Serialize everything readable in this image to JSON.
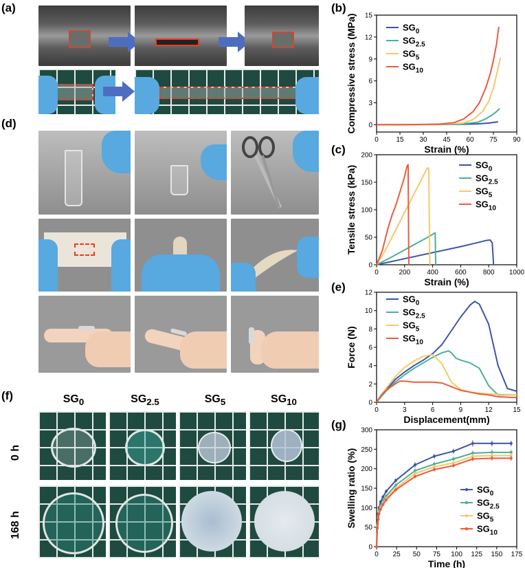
{
  "panel_labels": {
    "a": "(a)",
    "b": "(b)",
    "c": "(c)",
    "d": "(d)",
    "e": "(e)",
    "f": "(f)",
    "g": "(g)"
  },
  "swelling_photos": {
    "columns": [
      {
        "base": "SG",
        "sub": "0"
      },
      {
        "base": "SG",
        "sub": "2.5"
      },
      {
        "base": "SG",
        "sub": "5"
      },
      {
        "base": "SG",
        "sub": "10"
      }
    ],
    "rows": [
      "0 h",
      "168 h"
    ]
  },
  "colors": {
    "SG0": "#3b55a6",
    "SG2.5": "#4bae9c",
    "SG5": "#f6c868",
    "SG10": "#ee5a3c"
  },
  "chart_data": [
    {
      "id": "b",
      "type": "line",
      "xlabel": "Strain (%)",
      "ylabel": "Compressive stress (MPa)",
      "xlim": [
        0,
        90
      ],
      "ylim": [
        -1,
        15
      ],
      "xticks": [
        0,
        15,
        30,
        45,
        60,
        75,
        90
      ],
      "yticks": [
        0,
        3,
        6,
        9,
        12,
        15
      ],
      "legend_position": "top-left",
      "series": [
        {
          "name": "SG0",
          "base": "SG",
          "sub": "0",
          "color": "#3b55a6",
          "x": [
            0,
            20,
            40,
            55,
            65,
            72,
            78
          ],
          "y": [
            0,
            0.01,
            0.03,
            0.06,
            0.12,
            0.22,
            0.4
          ]
        },
        {
          "name": "SG2.5",
          "base": "SG",
          "sub": "2.5",
          "color": "#4bae9c",
          "x": [
            0,
            20,
            40,
            55,
            65,
            70,
            74,
            77,
            79
          ],
          "y": [
            0,
            0.01,
            0.04,
            0.1,
            0.35,
            0.8,
            1.3,
            1.8,
            2.2
          ]
        },
        {
          "name": "SG5",
          "base": "SG",
          "sub": "5",
          "color": "#f6c868",
          "x": [
            0,
            20,
            40,
            55,
            62,
            68,
            72,
            75,
            77,
            78.5,
            79.5
          ],
          "y": [
            0,
            0.01,
            0.05,
            0.2,
            0.7,
            1.8,
            3.2,
            5,
            6.8,
            8.2,
            9.2
          ]
        },
        {
          "name": "SG10",
          "base": "SG",
          "sub": "10",
          "color": "#ee5a3c",
          "x": [
            0,
            20,
            40,
            50,
            56,
            62,
            66,
            70,
            73,
            75,
            77,
            78.5
          ],
          "y": [
            0,
            0.02,
            0.08,
            0.3,
            0.8,
            1.8,
            3,
            5,
            7,
            8.8,
            11,
            13.4
          ]
        }
      ]
    },
    {
      "id": "c",
      "type": "line",
      "xlabel": "Strain (%)",
      "ylabel": "Tensile stress (kPa)",
      "xlim": [
        0,
        1000
      ],
      "ylim": [
        0,
        200
      ],
      "xticks": [
        0,
        200,
        400,
        600,
        800,
        1000
      ],
      "yticks": [
        0,
        50,
        100,
        150,
        200
      ],
      "legend_position": "top-right",
      "series": [
        {
          "name": "SG0",
          "base": "SG",
          "sub": "0",
          "color": "#3b55a6",
          "x": [
            0,
            200,
            400,
            600,
            700,
            780,
            810,
            825,
            835
          ],
          "y": [
            0,
            11,
            22,
            33,
            39,
            44,
            45,
            40,
            0
          ]
        },
        {
          "name": "SG2.5",
          "base": "SG",
          "sub": "2.5",
          "color": "#4bae9c",
          "x": [
            0,
            100,
            200,
            300,
            380,
            410,
            418,
            422
          ],
          "y": [
            0,
            13,
            27,
            41,
            52,
            57,
            58,
            0
          ]
        },
        {
          "name": "SG5",
          "base": "SG",
          "sub": "5",
          "color": "#f6c868",
          "x": [
            0,
            60,
            120,
            200,
            280,
            330,
            360,
            372,
            380
          ],
          "y": [
            0,
            25,
            55,
            95,
            135,
            160,
            175,
            176,
            0
          ]
        },
        {
          "name": "SG10",
          "base": "SG",
          "sub": "10",
          "color": "#ee5a3c",
          "x": [
            0,
            40,
            80,
            110,
            140,
            170,
            200,
            215,
            225,
            230
          ],
          "y": [
            0,
            25,
            65,
            90,
            110,
            135,
            160,
            178,
            182,
            0
          ]
        }
      ]
    },
    {
      "id": "e",
      "type": "line",
      "xlabel": "Displacement(mm)",
      "ylabel": "Force (N)",
      "xlim": [
        0,
        15
      ],
      "ylim": [
        0,
        12
      ],
      "xticks": [
        0,
        3,
        6,
        9,
        12,
        15
      ],
      "yticks": [
        0,
        2,
        4,
        6,
        8,
        10,
        12
      ],
      "legend_position": "top-left",
      "series": [
        {
          "name": "SG0",
          "base": "SG",
          "sub": "0",
          "color": "#3b55a6",
          "x": [
            0,
            1,
            2,
            3,
            4,
            5,
            6,
            7,
            8,
            9,
            10,
            10.5,
            11,
            12,
            13,
            14,
            15
          ],
          "y": [
            0,
            1.3,
            2.5,
            3.3,
            4,
            4.6,
            5.3,
            6.3,
            7.8,
            9.3,
            10.6,
            11,
            10.7,
            8.5,
            4,
            1.5,
            1.2
          ]
        },
        {
          "name": "SG2.5",
          "base": "SG",
          "sub": "2.5",
          "color": "#4bae9c",
          "x": [
            0,
            1,
            2,
            3,
            4,
            5,
            6,
            7,
            7.7,
            8,
            8.5,
            9,
            10,
            11,
            12,
            13,
            15
          ],
          "y": [
            0,
            1.2,
            2.2,
            3,
            3.7,
            4.3,
            4.9,
            5.4,
            5.6,
            5.4,
            4.8,
            4.6,
            4.3,
            3.7,
            1.8,
            0.8,
            0.8
          ]
        },
        {
          "name": "SG5",
          "base": "SG",
          "sub": "5",
          "color": "#f6c868",
          "x": [
            0,
            1,
            2,
            3,
            4,
            5,
            6,
            7,
            8,
            9,
            10,
            11,
            12,
            15
          ],
          "y": [
            0,
            1.5,
            2.8,
            3.8,
            4.5,
            5,
            5.2,
            4.2,
            2.2,
            1.4,
            1.1,
            1,
            0.9,
            0.8
          ]
        },
        {
          "name": "SG10",
          "base": "SG",
          "sub": "10",
          "color": "#ee5a3c",
          "x": [
            0,
            0.5,
            1,
            2,
            2.5,
            3,
            4,
            5,
            6,
            7,
            8,
            9,
            10,
            11,
            12,
            13,
            15
          ],
          "y": [
            0,
            0.8,
            1.3,
            2,
            2.3,
            2.3,
            2.2,
            2.2,
            2.2,
            2.1,
            1.7,
            1.3,
            1.1,
            0.9,
            0.8,
            0.6,
            0.5
          ]
        }
      ]
    },
    {
      "id": "g",
      "type": "line",
      "xlabel": "Time (h)",
      "ylabel": "Swelling ratio (%)",
      "xlim": [
        0,
        175
      ],
      "ylim": [
        0,
        300
      ],
      "xticks": [
        0,
        25,
        50,
        75,
        100,
        125,
        150,
        175
      ],
      "yticks": [
        0,
        50,
        100,
        150,
        200,
        250,
        300
      ],
      "legend_position": "bottom-right",
      "series": [
        {
          "name": "SG0",
          "base": "SG",
          "sub": "0",
          "color": "#3b55a6",
          "x": [
            0,
            1,
            2,
            3,
            5,
            8,
            12,
            24,
            48,
            72,
            96,
            120,
            144,
            168
          ],
          "y": [
            0,
            60,
            85,
            100,
            115,
            128,
            142,
            170,
            210,
            232,
            245,
            265,
            265,
            265
          ],
          "err": [
            0,
            3,
            3,
            4,
            4,
            4,
            5,
            5,
            7,
            6,
            6,
            8,
            7,
            7
          ]
        },
        {
          "name": "SG2.5",
          "base": "SG",
          "sub": "2.5",
          "color": "#4bae9c",
          "x": [
            0,
            1,
            2,
            3,
            5,
            8,
            12,
            24,
            48,
            72,
            96,
            120,
            144,
            168
          ],
          "y": [
            0,
            55,
            78,
            92,
            105,
            118,
            130,
            158,
            195,
            212,
            225,
            240,
            242,
            242
          ],
          "err": [
            0,
            3,
            3,
            3,
            4,
            4,
            4,
            5,
            6,
            6,
            6,
            7,
            7,
            7
          ]
        },
        {
          "name": "SG5",
          "base": "SG",
          "sub": "5",
          "color": "#f6c868",
          "x": [
            0,
            1,
            2,
            3,
            5,
            8,
            12,
            24,
            48,
            72,
            96,
            120,
            144,
            168
          ],
          "y": [
            0,
            52,
            74,
            88,
            100,
            112,
            124,
            150,
            188,
            205,
            215,
            232,
            234,
            234
          ],
          "err": [
            0,
            3,
            3,
            3,
            3,
            4,
            4,
            5,
            6,
            6,
            6,
            6,
            6,
            6
          ]
        },
        {
          "name": "SG10",
          "base": "SG",
          "sub": "10",
          "color": "#ee5a3c",
          "x": [
            0,
            1,
            2,
            3,
            5,
            8,
            12,
            24,
            48,
            72,
            96,
            120,
            144,
            168
          ],
          "y": [
            0,
            48,
            70,
            84,
            96,
            108,
            120,
            146,
            180,
            198,
            208,
            225,
            227,
            227
          ],
          "err": [
            0,
            3,
            3,
            3,
            3,
            4,
            4,
            4,
            5,
            5,
            5,
            6,
            6,
            6
          ]
        }
      ]
    }
  ]
}
